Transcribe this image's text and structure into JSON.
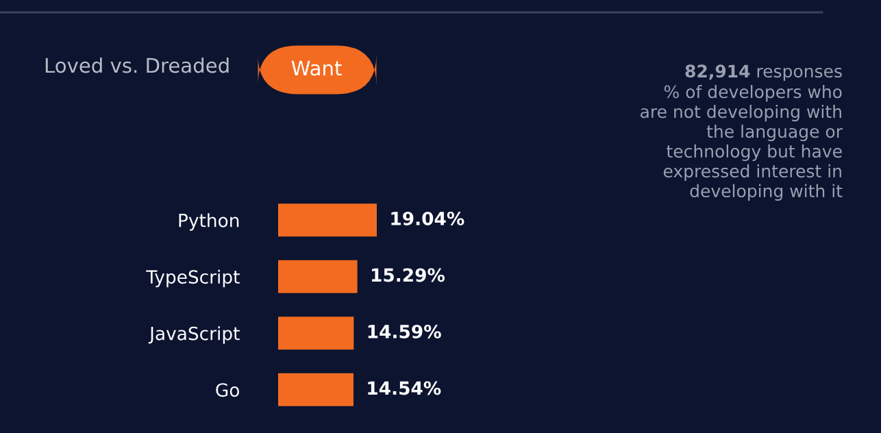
{
  "chart_data": {
    "type": "bar",
    "orientation": "horizontal",
    "categories": [
      "Python",
      "TypeScript",
      "JavaScript",
      "Go"
    ],
    "values": [
      19.04,
      15.29,
      14.59,
      14.54
    ],
    "value_labels": [
      "19.04%",
      "15.29%",
      "14.59%",
      "14.54%"
    ],
    "color": "#f26b21",
    "annotations": [
      "Loved vs. Dreaded",
      "Want",
      "82,914",
      "responses",
      "% of developers who\nare not developing with\nthe language or\ntechnology but have\nexpressed interest in\ndeveloping with it"
    ],
    "grid": false,
    "legend": false
  }
}
